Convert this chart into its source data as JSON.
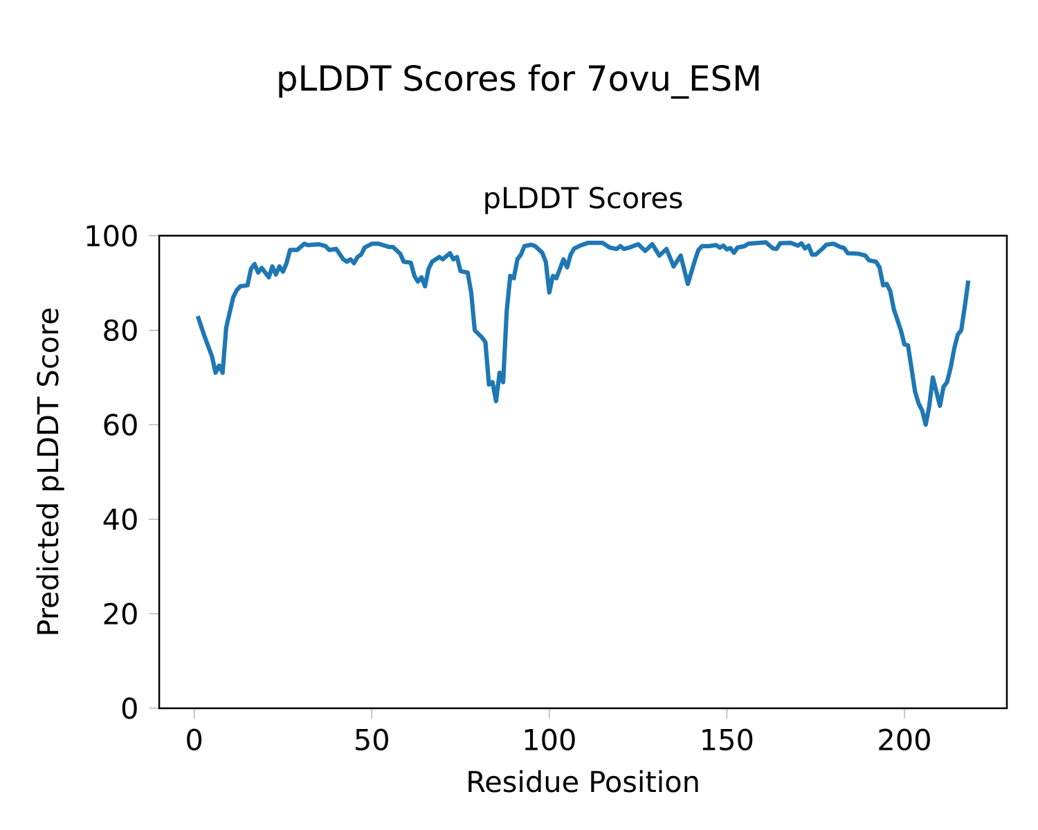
{
  "chart_data": {
    "type": "line",
    "title": "pLDDT Scores for 7ovu_ESM",
    "subtitle": "pLDDT Scores",
    "xlabel": "Residue Position",
    "ylabel": "Predicted pLDDT Score",
    "color": "#1f77b4",
    "x": [
      1,
      3,
      5,
      6,
      7,
      8,
      9,
      11,
      12,
      13,
      15,
      16,
      17,
      18,
      19,
      21,
      22,
      23,
      24,
      25,
      26,
      27,
      29,
      31,
      32,
      35,
      37,
      38,
      40,
      42,
      43,
      44,
      45,
      46,
      47,
      48,
      50,
      52,
      55,
      56,
      58,
      59,
      61,
      62,
      63,
      64,
      65,
      66,
      67,
      69,
      70,
      72,
      73,
      74,
      75,
      77,
      78,
      79,
      81,
      82,
      83,
      84,
      85,
      86,
      87,
      88,
      89,
      90,
      91,
      92,
      93,
      95,
      96,
      98,
      99,
      100,
      101,
      102,
      104,
      105,
      106,
      107,
      109,
      111,
      115,
      117,
      119,
      120,
      121,
      123,
      125,
      127,
      129,
      131,
      133,
      135,
      137,
      139,
      141,
      142,
      143,
      145,
      147,
      148,
      149,
      150,
      151,
      152,
      153,
      155,
      156,
      161,
      163,
      164,
      165,
      168,
      170,
      171,
      172,
      173,
      174,
      175,
      177,
      178,
      180,
      182,
      183,
      184,
      187,
      189,
      190,
      192,
      193,
      194,
      195,
      196,
      197,
      199,
      200,
      201,
      203,
      204,
      205,
      206,
      207,
      208,
      210,
      211,
      212,
      213,
      214,
      215,
      216,
      217,
      218
    ],
    "values": [
      83,
      78.5,
      74.5,
      71,
      72.5,
      71,
      80.5,
      87,
      88.5,
      89.3,
      89.5,
      93,
      94,
      92.2,
      93.2,
      91.2,
      93.5,
      91.8,
      93.5,
      92.4,
      94.2,
      97,
      97,
      98.3,
      98,
      98.2,
      97.8,
      97,
      97.2,
      95,
      94.5,
      95,
      94.2,
      95.5,
      96,
      97.5,
      98.3,
      98.3,
      97.6,
      97.6,
      96.2,
      94.5,
      94.3,
      91.5,
      90.3,
      91.2,
      89.3,
      93,
      94.5,
      95.5,
      95,
      96.3,
      95,
      95.5,
      92.5,
      92.2,
      88,
      80,
      78.5,
      77.5,
      68.5,
      69,
      65,
      71,
      69,
      84,
      91.5,
      91,
      95,
      96,
      97.8,
      98.1,
      97.8,
      96.4,
      94.5,
      88,
      91.5,
      91,
      95,
      93.3,
      96,
      97.3,
      98,
      98.5,
      98.5,
      97.5,
      97.2,
      97.8,
      97.2,
      97.6,
      98.2,
      96.8,
      98.2,
      95.8,
      97.2,
      93.5,
      95.8,
      89.8,
      94.8,
      97,
      97.8,
      97.8,
      98,
      97.5,
      97.9,
      97.1,
      97.4,
      96.4,
      97.5,
      97.8,
      98.3,
      98.6,
      97.3,
      97.2,
      98.4,
      98.5,
      97.9,
      98.4,
      97.3,
      97.9,
      96,
      96,
      97.3,
      98.1,
      98.3,
      97.6,
      97.4,
      96.3,
      96.2,
      95.8,
      94.8,
      94.5,
      93.3,
      89.5,
      89.8,
      88.3,
      84.5,
      80,
      77,
      76.8,
      67,
      64.5,
      63,
      60,
      64,
      70,
      64,
      68,
      69,
      72,
      76,
      79,
      80,
      85,
      90.5
    ],
    "xlim": [
      -9.85,
      228.85
    ],
    "ylim": [
      0,
      100
    ],
    "xticks": [
      0,
      50,
      100,
      150,
      200
    ],
    "yticks": [
      0,
      20,
      40,
      60,
      80,
      100
    ]
  }
}
